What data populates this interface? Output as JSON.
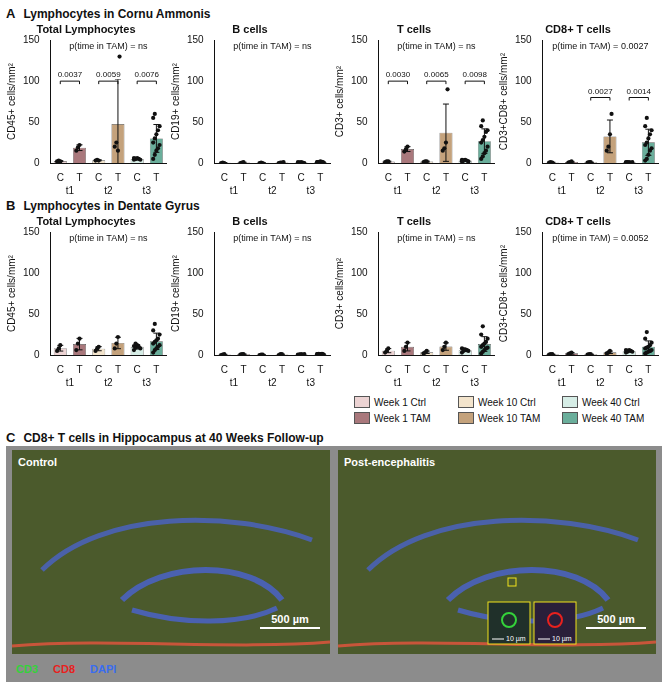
{
  "panel_headings": [
    {
      "letter": "A",
      "title": "Lymphocytes in Cornu Ammonis"
    },
    {
      "letter": "B",
      "title": "Lymphocytes in Dentate Gyrus"
    }
  ],
  "chart_data": [
    {
      "panel": "A",
      "type": "bar",
      "title": "Total Lymphocytes",
      "y_label": "CD45+ cells/mm²",
      "categories": [
        "C",
        "T",
        "C",
        "T",
        "C",
        "T"
      ],
      "groups": [
        "t1",
        "t2",
        "t3"
      ],
      "colors": [
        "#ecd3d3",
        "#a9787c",
        "#f3e4cc",
        "#c4a27c",
        "#d6ede6",
        "#6aae9b"
      ],
      "values": [
        2.3,
        18.7,
        3.3,
        47.5,
        5,
        30
      ],
      "errors": [
        0.6,
        3.5,
        0.6,
        55,
        0.8,
        17
      ],
      "points": [
        [
          2,
          3,
          2
        ],
        [
          15,
          19,
          22
        ],
        [
          3,
          4,
          3
        ],
        [
          20,
          25,
          15,
          130
        ],
        [
          4,
          5,
          6,
          5,
          4,
          6,
          5
        ],
        [
          5,
          10,
          15,
          18,
          22,
          25,
          30,
          35,
          40,
          45,
          55,
          60
        ]
      ],
      "ylim": [
        0,
        150
      ],
      "yticks": [
        0,
        50,
        100,
        150
      ],
      "grid": false,
      "annotation": "p(time in TAM) = ns",
      "comparisons": [
        {
          "from": 0,
          "to": 1,
          "y": 100,
          "label": "0.0037"
        },
        {
          "from": 2,
          "to": 3,
          "y": 100,
          "label": "0.0059"
        },
        {
          "from": 4,
          "to": 5,
          "y": 100,
          "label": "0.0076"
        }
      ]
    },
    {
      "panel": "A",
      "type": "bar",
      "title": "B cells",
      "y_label": "CD19+ cells/mm²",
      "categories": [
        "C",
        "T",
        "C",
        "T",
        "C",
        "T"
      ],
      "groups": [
        "t1",
        "t2",
        "t3"
      ],
      "colors": [
        "#ecd3d3",
        "#a9787c",
        "#f3e4cc",
        "#c4a27c",
        "#d6ede6",
        "#6aae9b"
      ],
      "values": [
        0.2,
        0.5,
        0.2,
        0.5,
        0.5,
        0.8
      ],
      "errors": [
        0.3,
        0.5,
        0.3,
        0.4,
        0.4,
        0.6
      ],
      "points": [
        [
          0,
          0.5,
          0
        ],
        [
          0,
          0.5,
          1
        ],
        [
          0,
          0.5,
          0
        ],
        [
          0,
          0.5,
          0.5,
          1
        ],
        [
          0,
          0.5,
          1,
          0.5,
          0,
          1,
          0.5
        ],
        [
          0,
          0.5,
          1,
          1.5,
          0.5,
          1,
          0,
          2,
          1,
          0.5,
          1,
          1
        ]
      ],
      "ylim": [
        0,
        150
      ],
      "yticks": [
        0,
        50,
        100,
        150
      ],
      "grid": false,
      "annotation": "p(time in TAM) = ns",
      "comparisons": []
    },
    {
      "panel": "A",
      "type": "bar",
      "title": "T cells",
      "y_label": "CD3+ cells/mm²",
      "categories": [
        "C",
        "T",
        "C",
        "T",
        "C",
        "T"
      ],
      "groups": [
        "t1",
        "t2",
        "t3"
      ],
      "colors": [
        "#ecd3d3",
        "#a9787c",
        "#f3e4cc",
        "#c4a27c",
        "#d6ede6",
        "#6aae9b"
      ],
      "values": [
        1.7,
        17,
        1.7,
        37,
        3,
        26.7
      ],
      "errors": [
        0.6,
        3,
        0.6,
        35,
        0.8,
        15
      ],
      "points": [
        [
          1,
          2,
          2
        ],
        [
          14,
          17,
          20
        ],
        [
          1,
          2,
          2
        ],
        [
          15,
          18,
          25,
          90
        ],
        [
          2,
          3,
          4,
          3,
          2,
          4,
          3
        ],
        [
          5,
          8,
          12,
          15,
          20,
          25,
          28,
          32,
          38,
          40,
          45,
          52
        ]
      ],
      "ylim": [
        0,
        150
      ],
      "yticks": [
        0,
        50,
        100,
        150
      ],
      "grid": false,
      "annotation": "p(time in TAM) = ns",
      "comparisons": [
        {
          "from": 0,
          "to": 1,
          "y": 100,
          "label": "0.0030"
        },
        {
          "from": 2,
          "to": 3,
          "y": 100,
          "label": "0.0065"
        },
        {
          "from": 4,
          "to": 5,
          "y": 100,
          "label": "0.0098"
        }
      ]
    },
    {
      "panel": "A",
      "type": "bar",
      "title": "CD8+ T cells",
      "y_label": "CD3+CD8+ cells/mm²",
      "categories": [
        "C",
        "T",
        "C",
        "T",
        "C",
        "T"
      ],
      "groups": [
        "t1",
        "t2",
        "t3"
      ],
      "colors": [
        "#ecd3d3",
        "#a9787c",
        "#f3e4cc",
        "#c4a27c",
        "#d6ede6",
        "#6aae9b"
      ],
      "values": [
        0.7,
        1.2,
        0.8,
        32.5,
        0.8,
        25.3
      ],
      "errors": [
        0.3,
        0.8,
        0.3,
        20,
        0.3,
        16
      ],
      "points": [
        [
          0.5,
          1,
          0.5
        ],
        [
          0.5,
          1,
          2
        ],
        [
          0.5,
          1,
          1
        ],
        [
          15,
          20,
          35,
          60
        ],
        [
          0.5,
          1,
          1,
          0.5,
          1,
          1,
          0.5
        ],
        [
          3,
          5,
          10,
          15,
          18,
          22,
          25,
          30,
          35,
          40,
          45,
          55
        ]
      ],
      "ylim": [
        0,
        150
      ],
      "yticks": [
        0,
        50,
        100,
        150
      ],
      "grid": false,
      "annotation": "p(time in TAM) = 0.0027",
      "comparisons": [
        {
          "from": 2,
          "to": 3,
          "y": 80,
          "label": "0.0027"
        },
        {
          "from": 4,
          "to": 5,
          "y": 80,
          "label": "0.0014"
        }
      ]
    },
    {
      "panel": "B",
      "type": "bar",
      "title": "Total Lymphocytes",
      "y_label": "CD45+ cells/mm²",
      "categories": [
        "C",
        "T",
        "C",
        "T",
        "C",
        "T"
      ],
      "groups": [
        "t1",
        "t2",
        "t3"
      ],
      "colors": [
        "#ecd3d3",
        "#a9787c",
        "#f3e4cc",
        "#c4a27c",
        "#d6ede6",
        "#6aae9b"
      ],
      "values": [
        8.3,
        13.3,
        7.7,
        14.7,
        10,
        16.7
      ],
      "errors": [
        3.5,
        7,
        2.5,
        7,
        2.7,
        10
      ],
      "points": [
        [
          5,
          8,
          12
        ],
        [
          6,
          14,
          20
        ],
        [
          5,
          8,
          10
        ],
        [
          8,
          14,
          22
        ],
        [
          6,
          9,
          12,
          10,
          8,
          11,
          14
        ],
        [
          3,
          6,
          8,
          10,
          12,
          14,
          16,
          18,
          20,
          25,
          30,
          38
        ]
      ],
      "ylim": [
        0,
        150
      ],
      "yticks": [
        0,
        50,
        100,
        150
      ],
      "grid": false,
      "annotation": "p(time in TAM) = ns",
      "comparisons": []
    },
    {
      "panel": "B",
      "type": "bar",
      "title": "B cells",
      "y_label": "CD19+ cells/mm²",
      "categories": [
        "C",
        "T",
        "C",
        "T",
        "C",
        "T"
      ],
      "groups": [
        "t1",
        "t2",
        "t3"
      ],
      "colors": [
        "#ecd3d3",
        "#a9787c",
        "#f3e4cc",
        "#c4a27c",
        "#d6ede6",
        "#6aae9b"
      ],
      "values": [
        0.5,
        0.8,
        0.4,
        0.6,
        0.6,
        0.7
      ],
      "errors": [
        0.4,
        0.5,
        0.3,
        0.5,
        0.4,
        0.6
      ],
      "points": [
        [
          0,
          0.5,
          1
        ],
        [
          0.5,
          1,
          1
        ],
        [
          0,
          0.5,
          0.5
        ],
        [
          0,
          1,
          1
        ],
        [
          0,
          0.5,
          1,
          0.5,
          1,
          0.5,
          0.5
        ],
        [
          0,
          0.5,
          1,
          1.5,
          0.5,
          1,
          0,
          1,
          1,
          0.5,
          1,
          1.5
        ]
      ],
      "ylim": [
        0,
        150
      ],
      "yticks": [
        0,
        50,
        100,
        150
      ],
      "grid": false,
      "annotation": "p(time in TAM) = ns",
      "comparisons": []
    },
    {
      "panel": "B",
      "type": "bar",
      "title": "T cells",
      "y_label": "CD3+ cells/mm²",
      "categories": [
        "C",
        "T",
        "C",
        "T",
        "C",
        "T"
      ],
      "groups": [
        "t1",
        "t2",
        "t3"
      ],
      "colors": [
        "#ecd3d3",
        "#a9787c",
        "#f3e4cc",
        "#c4a27c",
        "#d6ede6",
        "#6aae9b"
      ],
      "values": [
        5.3,
        10,
        3.3,
        10.3,
        5.9,
        13.4
      ],
      "errors": [
        2.5,
        5,
        1.5,
        4.5,
        1.6,
        9
      ],
      "points": [
        [
          3,
          5,
          8
        ],
        [
          5,
          10,
          15
        ],
        [
          2,
          3,
          5
        ],
        [
          6,
          10,
          15
        ],
        [
          3,
          5,
          7,
          6,
          5,
          8,
          7
        ],
        [
          2,
          4,
          6,
          8,
          9,
          10,
          12,
          14,
          16,
          20,
          25,
          35
        ]
      ],
      "ylim": [
        0,
        150
      ],
      "yticks": [
        0,
        50,
        100,
        150
      ],
      "grid": false,
      "annotation": "p(time in TAM) = ns",
      "comparisons": []
    },
    {
      "panel": "B",
      "type": "bar",
      "title": "CD8+ T cells",
      "y_label": "CD3+CD8+ cells/mm²",
      "categories": [
        "C",
        "T",
        "C",
        "T",
        "C",
        "T"
      ],
      "groups": [
        "t1",
        "t2",
        "t3"
      ],
      "colors": [
        "#ecd3d3",
        "#a9787c",
        "#f3e4cc",
        "#c4a27c",
        "#d6ede6",
        "#6aae9b"
      ],
      "values": [
        0.8,
        2,
        0.8,
        3.3,
        4.7,
        10.2
      ],
      "errors": [
        0.3,
        1,
        0.3,
        1.5,
        1,
        7
      ],
      "points": [
        [
          0.5,
          1,
          1
        ],
        [
          1,
          2,
          3
        ],
        [
          0.5,
          1,
          1
        ],
        [
          2,
          3,
          5
        ],
        [
          3,
          4,
          6,
          5,
          4,
          6,
          5
        ],
        [
          2,
          3,
          4,
          5,
          6,
          8,
          9,
          10,
          12,
          15,
          20,
          28
        ]
      ],
      "ylim": [
        0,
        150
      ],
      "yticks": [
        0,
        50,
        100,
        150
      ],
      "grid": false,
      "annotation": "p(time in TAM) = 0.0052",
      "comparisons": []
    }
  ],
  "legend_items": [
    {
      "name": "Week 1 Ctrl",
      "color": "#ecd3d3"
    },
    {
      "name": "Week 1 TAM",
      "color": "#a9787c"
    },
    {
      "name": "Week 10 Ctrl",
      "color": "#f3e4cc"
    },
    {
      "name": "Week 10 TAM",
      "color": "#c4a27c"
    },
    {
      "name": "Week 40 Ctrl",
      "color": "#d6ede6"
    },
    {
      "name": "Week 40 TAM",
      "color": "#6aae9b"
    }
  ],
  "image_panel": {
    "letter": "C",
    "title": "CD8+ T cells in Hippocampus at 40 Weeks Follow-up",
    "images": [
      {
        "label": "Control",
        "scale_bar": "500 µm"
      },
      {
        "label": "Post-encephalitis",
        "scale_bar": "500 µm",
        "insets": [
          {
            "scale_bar": "10 µm"
          },
          {
            "scale_bar": "10 µm"
          }
        ]
      }
    ],
    "channels": [
      {
        "name": "CD3",
        "color": "#34d23a"
      },
      {
        "name": "CD8",
        "color": "#e8211e"
      },
      {
        "name": "DAPI",
        "color": "#3a6df0"
      }
    ]
  }
}
